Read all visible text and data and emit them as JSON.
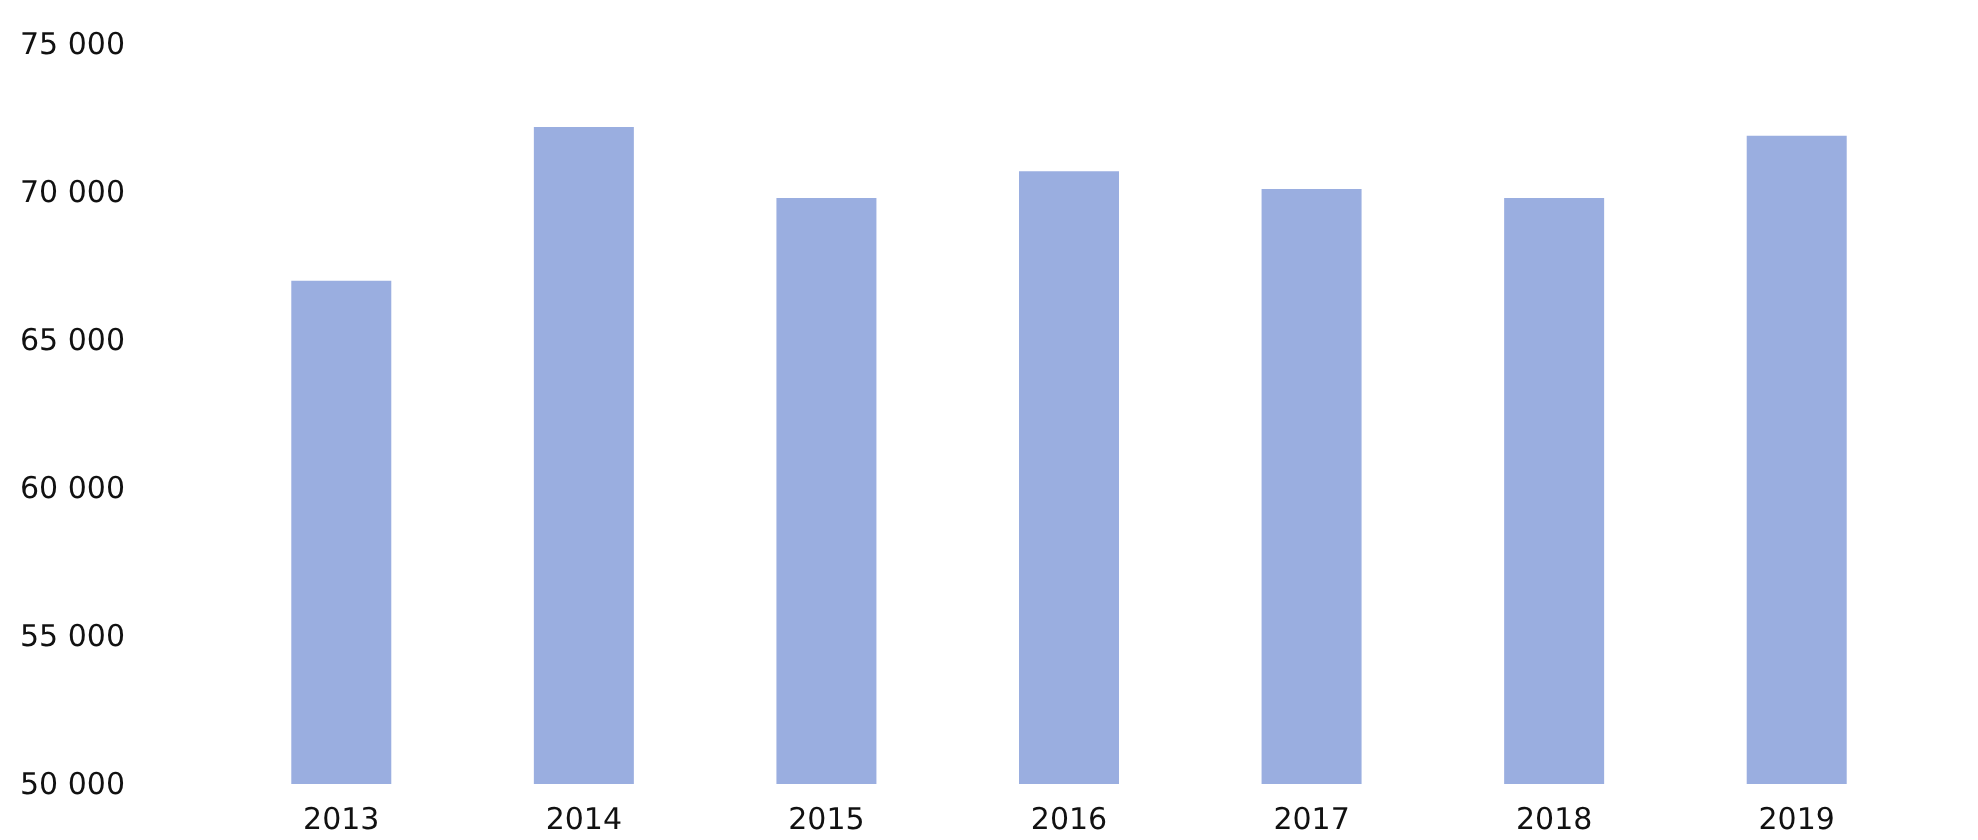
{
  "chart_data": {
    "type": "bar",
    "categories": [
      "2013",
      "2014",
      "2015",
      "2016",
      "2017",
      "2018",
      "2019"
    ],
    "values": [
      67000,
      72200,
      69800,
      70700,
      70100,
      69800,
      71900
    ],
    "color": "#9aaee0",
    "ylim": [
      50000,
      75000
    ],
    "yticks": [
      {
        "value": 50000,
        "label": "50 000"
      },
      {
        "value": 55000,
        "label": "55 000"
      },
      {
        "value": 60000,
        "label": "60 000"
      },
      {
        "value": 65000,
        "label": "65 000"
      },
      {
        "value": 70000,
        "label": "70 000"
      },
      {
        "value": 75000,
        "label": "75 000"
      }
    ],
    "grid": false
  }
}
